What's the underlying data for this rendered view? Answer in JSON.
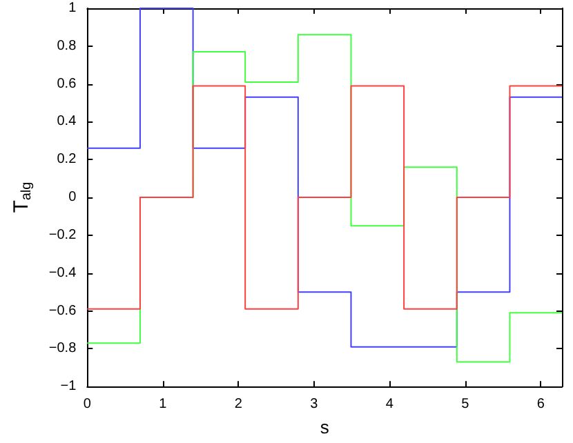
{
  "chart_data": {
    "type": "step",
    "xlabel": "s",
    "ylabel": "T$_{alg}$",
    "x": [
      0,
      0.7,
      1.4,
      2.09,
      2.79,
      3.49,
      4.19,
      4.89,
      5.59,
      6.28
    ],
    "series": [
      {
        "color": "#4040ff",
        "values": [
          0.26,
          1,
          0.26,
          0.53,
          -0.5,
          -0.79,
          -0.79,
          -0.5,
          0.53,
          0.53
        ]
      },
      {
        "color": "#40ff40",
        "values": [
          -0.77,
          0,
          0.77,
          0.61,
          0.86,
          -0.15,
          0.16,
          -0.87,
          -0.61,
          -0.61
        ]
      },
      {
        "color": "#ff4040",
        "values": [
          -0.59,
          0,
          0.59,
          -0.59,
          0,
          0.59,
          -0.59,
          0,
          0.59,
          0.59
        ]
      }
    ],
    "xlim": [
      0,
      6.28
    ],
    "xticks": [
      0,
      1,
      2,
      3,
      4,
      5,
      6
    ],
    "ylim": [
      -1,
      1
    ],
    "yticks": [
      -1,
      -0.8,
      -0.6,
      -0.4,
      -0.2,
      0,
      0.2,
      0.4,
      0.6,
      0.8,
      1
    ],
    "grid": false,
    "marker": "none",
    "line_style": "solid"
  }
}
